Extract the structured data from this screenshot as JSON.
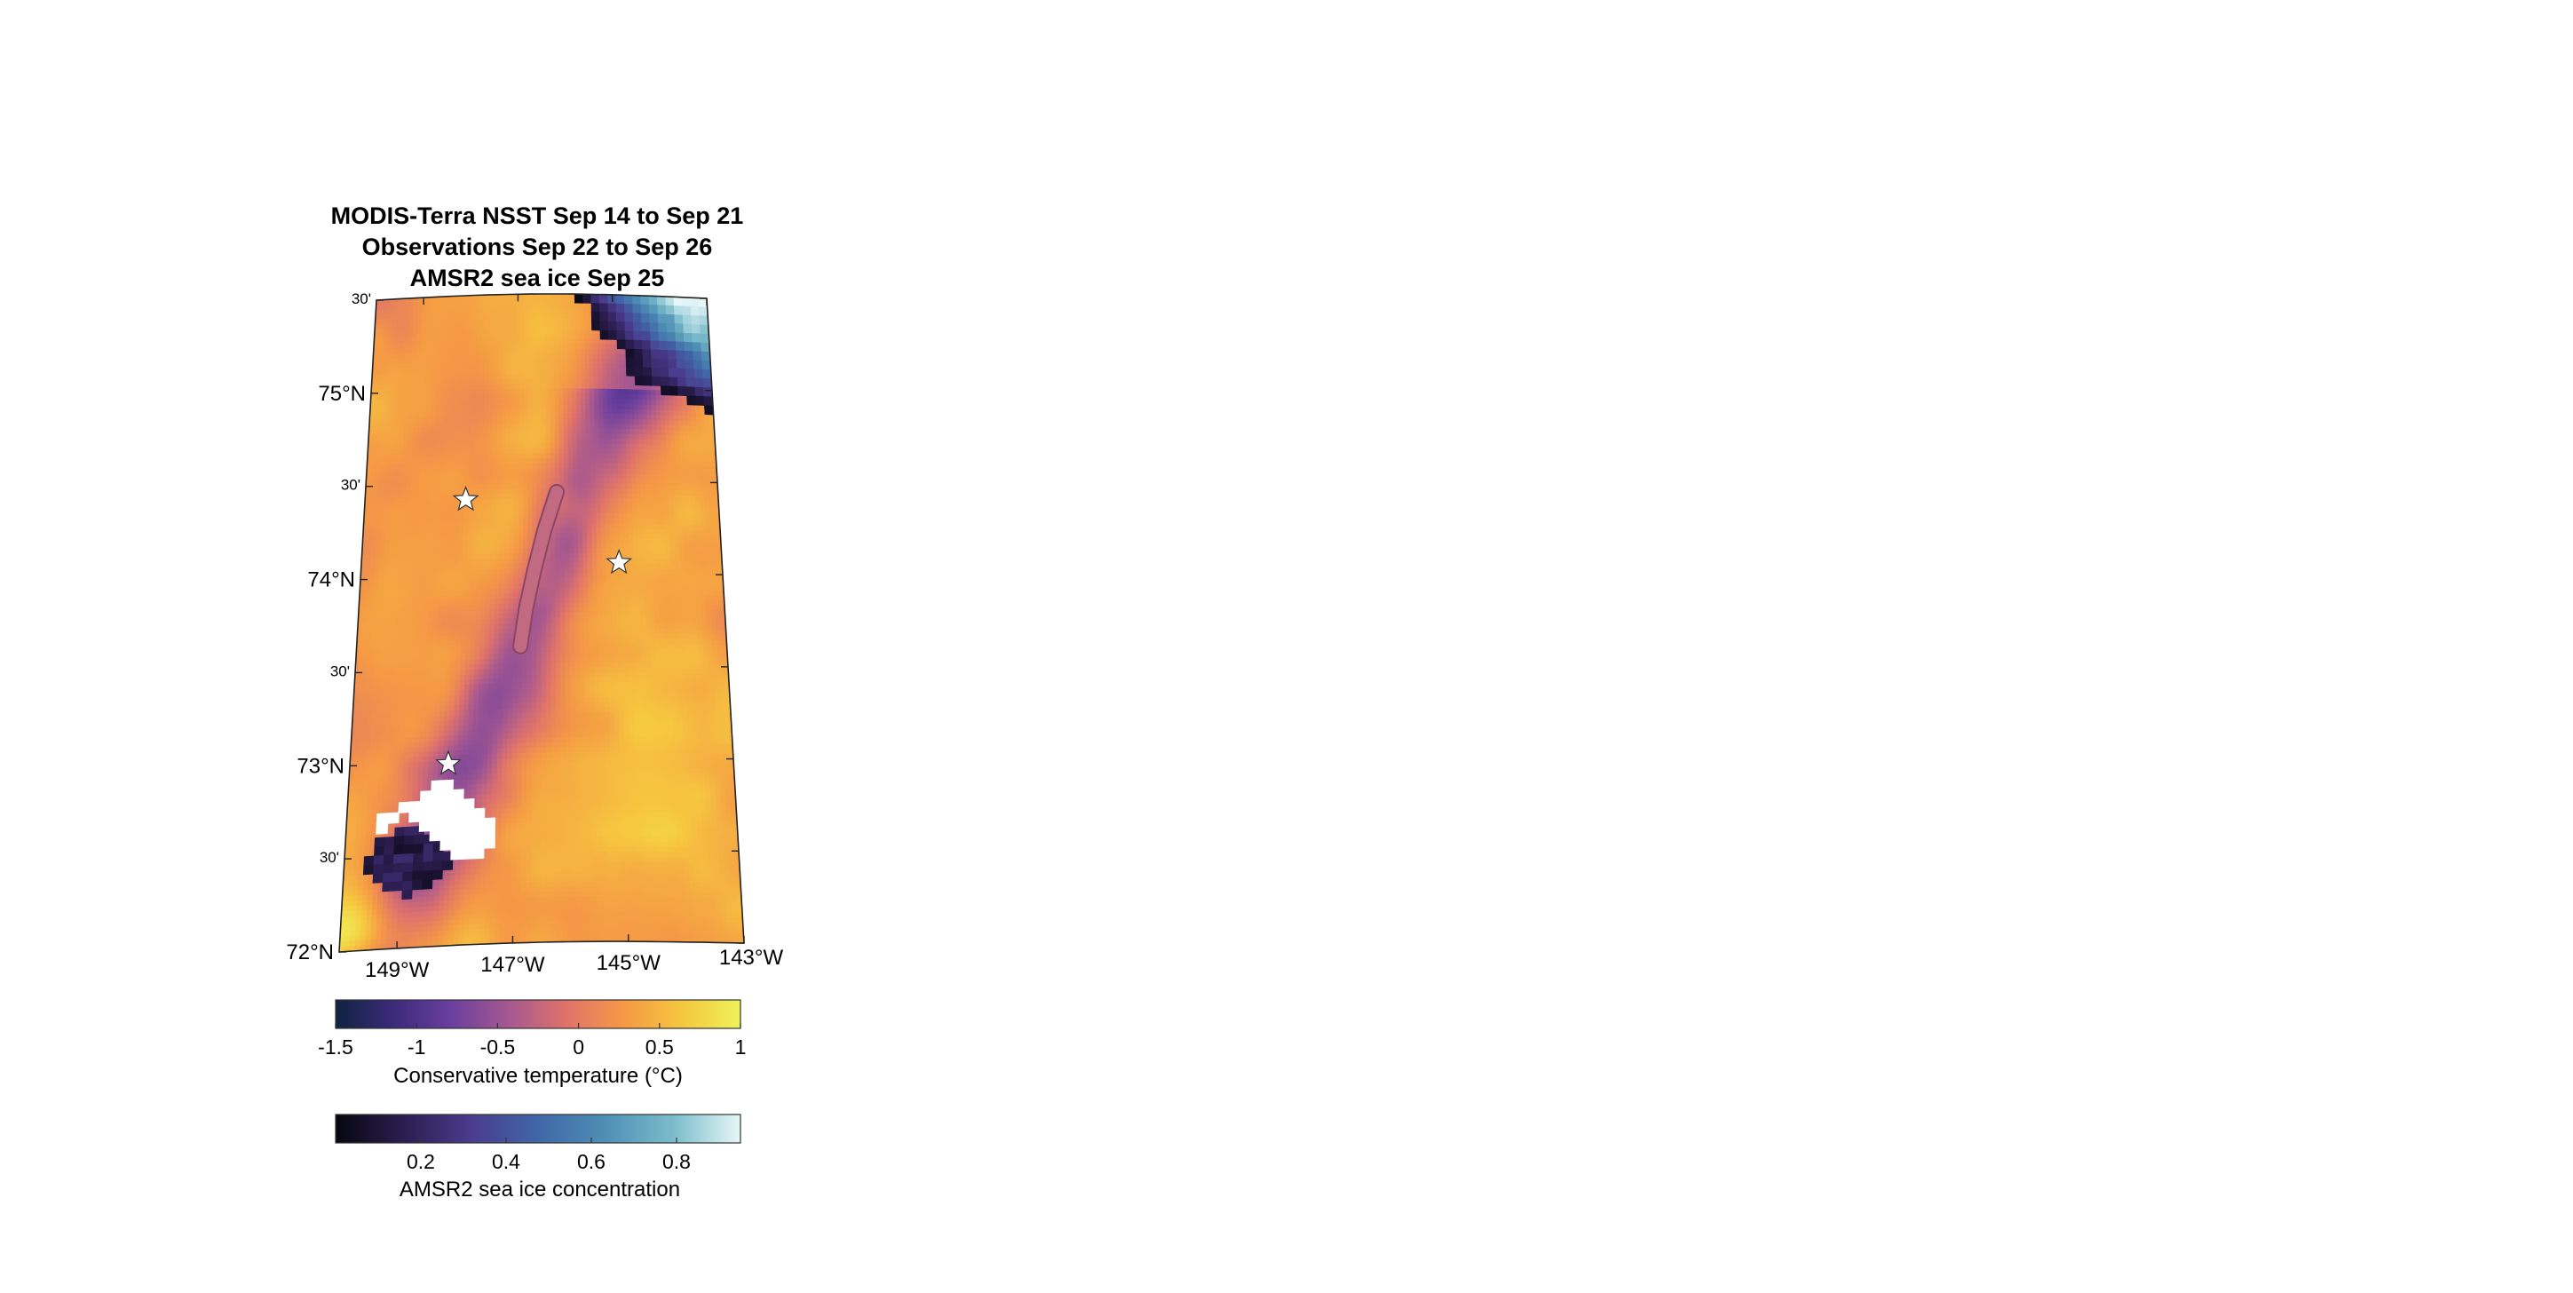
{
  "title_lines": [
    "MODIS-Terra NSST Sep 14 to Sep 21",
    "Observations Sep 22 to Sep 26",
    "AMSR2 sea ice Sep 25"
  ],
  "map": {
    "lat_labels": [
      {
        "lat": 75.5,
        "text": "30'",
        "major": false
      },
      {
        "lat": 75.0,
        "text": "75°N",
        "major": true
      },
      {
        "lat": 74.5,
        "text": "30'",
        "major": false
      },
      {
        "lat": 74.0,
        "text": "74°N",
        "major": true
      },
      {
        "lat": 73.5,
        "text": "30'",
        "major": false
      },
      {
        "lat": 73.0,
        "text": "73°N",
        "major": true
      },
      {
        "lat": 72.5,
        "text": "30'",
        "major": false
      },
      {
        "lat": 72.0,
        "text": "72°N",
        "major": true
      }
    ],
    "lon_labels": [
      {
        "lon": -149,
        "text": "149°W"
      },
      {
        "lon": -147,
        "text": "147°W"
      },
      {
        "lon": -145,
        "text": "145°W"
      },
      {
        "lon": -143,
        "text": "143°W"
      }
    ],
    "extent": {
      "lon_min": -150,
      "lon_max": -143,
      "lat_min": 72,
      "lat_max": 75.5
    },
    "stars": [
      {
        "lon": -148.0,
        "lat": 74.4
      },
      {
        "lon": -145.0,
        "lat": 74.05
      },
      {
        "lon": -148.2,
        "lat": 72.98
      }
    ],
    "observation_track": [
      {
        "lon": -146.2,
        "lat": 74.43
      },
      {
        "lon": -146.45,
        "lat": 74.22
      },
      {
        "lon": -146.65,
        "lat": 74.0
      },
      {
        "lon": -146.8,
        "lat": 73.8
      },
      {
        "lon": -146.9,
        "lat": 73.6
      }
    ],
    "track_color": "#c26a82",
    "star_color": "#ffffff"
  },
  "colorbar_temperature": {
    "ticks": [
      "-1.5",
      "-1",
      "-0.5",
      "0",
      "0.5",
      "1"
    ],
    "tick_values": [
      -1.5,
      -1,
      -0.5,
      0,
      0.5,
      1
    ],
    "range": [
      -1.5,
      1
    ],
    "label": "Conservative temperature  (°C)",
    "colormap": [
      "#0f2340",
      "#3b2a7a",
      "#6a3f9e",
      "#a65890",
      "#e0736a",
      "#f59a45",
      "#f6c73f",
      "#eef25a"
    ]
  },
  "colorbar_ice": {
    "ticks": [
      "0.2",
      "0.4",
      "0.6",
      "0.8"
    ],
    "tick_values": [
      0.2,
      0.4,
      0.6,
      0.8
    ],
    "range": [
      0.0,
      0.95
    ],
    "label": "AMSR2 sea ice concentration",
    "colormap": [
      "#06070f",
      "#2b1d4f",
      "#4a3b8d",
      "#4066a8",
      "#4f8fb5",
      "#7bbccb",
      "#e6f7f8"
    ]
  }
}
